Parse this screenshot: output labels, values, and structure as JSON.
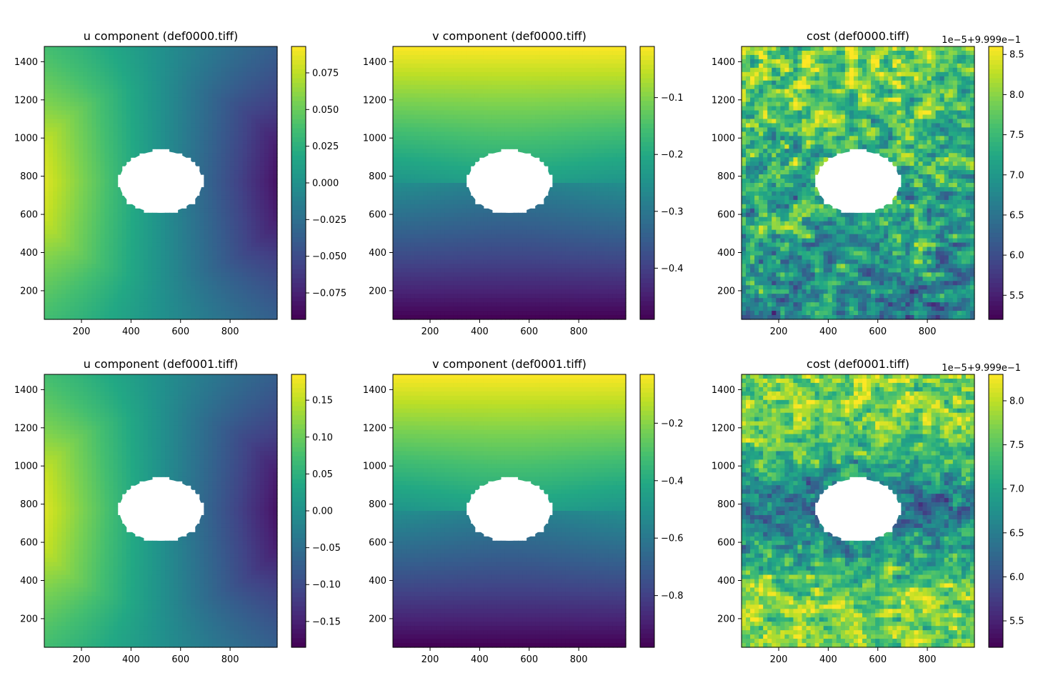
{
  "figure": {
    "background": "#ffffff"
  },
  "chart_data": [
    {
      "type": "heatmap",
      "title": "u component (def0000.tiff)",
      "field": "u",
      "x_ticks": [
        200,
        400,
        600,
        800
      ],
      "y_ticks": [
        200,
        400,
        600,
        800,
        1000,
        1200,
        1400
      ],
      "xlim": [
        50,
        990
      ],
      "ylim": [
        50,
        1480
      ],
      "colormap": "viridis",
      "colorbar": {
        "range": [
          -0.093,
          0.093
        ],
        "ticks": [
          "0.075",
          "0.050",
          "0.025",
          "0.000",
          "−0.025",
          "−0.050",
          "−0.075"
        ],
        "tick_values": [
          0.075,
          0.05,
          0.025,
          0,
          -0.025,
          -0.05,
          -0.075
        ],
        "offset_text": ""
      },
      "mask": {
        "shape": "ellipse",
        "center": [
          520,
          770
        ],
        "radii": [
          170,
          165
        ],
        "color": "#ffffff"
      }
    },
    {
      "type": "heatmap",
      "title": "v component (def0000.tiff)",
      "field": "v",
      "x_ticks": [
        200,
        400,
        600,
        800
      ],
      "y_ticks": [
        200,
        400,
        600,
        800,
        1000,
        1200,
        1400
      ],
      "xlim": [
        50,
        990
      ],
      "ylim": [
        50,
        1480
      ],
      "colormap": "viridis",
      "colorbar": {
        "range": [
          -0.49,
          -0.01
        ],
        "ticks": [
          "−0.1",
          "−0.2",
          "−0.3",
          "−0.4"
        ],
        "tick_values": [
          -0.1,
          -0.2,
          -0.3,
          -0.4
        ],
        "offset_text": ""
      },
      "mask": {
        "shape": "ellipse",
        "center": [
          520,
          770
        ],
        "radii": [
          170,
          165
        ],
        "color": "#ffffff"
      }
    },
    {
      "type": "heatmap",
      "title": "cost (def0000.tiff)",
      "field": "cost_a",
      "x_ticks": [
        200,
        400,
        600,
        800
      ],
      "y_ticks": [
        200,
        400,
        600,
        800,
        1000,
        1200,
        1400
      ],
      "xlim": [
        50,
        990
      ],
      "ylim": [
        50,
        1480
      ],
      "colormap": "viridis",
      "colorbar": {
        "range": [
          5.2,
          8.6
        ],
        "ticks": [
          "8.5",
          "8.0",
          "7.5",
          "7.0",
          "6.5",
          "6.0",
          "5.5"
        ],
        "tick_values": [
          8.5,
          8.0,
          7.5,
          7.0,
          6.5,
          6.0,
          5.5
        ],
        "offset_text": "1e−5+9.999e−1"
      },
      "mask": {
        "shape": "ellipse",
        "center": [
          520,
          770
        ],
        "radii": [
          170,
          165
        ],
        "color": "#ffffff"
      }
    },
    {
      "type": "heatmap",
      "title": "u component (def0001.tiff)",
      "field": "u",
      "x_ticks": [
        200,
        400,
        600,
        800
      ],
      "y_ticks": [
        200,
        400,
        600,
        800,
        1000,
        1200,
        1400
      ],
      "xlim": [
        50,
        990
      ],
      "ylim": [
        50,
        1480
      ],
      "colormap": "viridis",
      "colorbar": {
        "range": [
          -0.185,
          0.185
        ],
        "ticks": [
          "0.15",
          "0.10",
          "0.05",
          "0.00",
          "−0.05",
          "−0.10",
          "−0.15"
        ],
        "tick_values": [
          0.15,
          0.1,
          0.05,
          0,
          -0.05,
          -0.1,
          -0.15
        ],
        "offset_text": ""
      },
      "mask": {
        "shape": "ellipse",
        "center": [
          520,
          770
        ],
        "radii": [
          170,
          165
        ],
        "color": "#ffffff"
      }
    },
    {
      "type": "heatmap",
      "title": "v component (def0001.tiff)",
      "field": "v",
      "x_ticks": [
        200,
        400,
        600,
        800
      ],
      "y_ticks": [
        200,
        400,
        600,
        800,
        1000,
        1200,
        1400
      ],
      "xlim": [
        50,
        990
      ],
      "ylim": [
        50,
        1480
      ],
      "colormap": "viridis",
      "colorbar": {
        "range": [
          -0.98,
          -0.03
        ],
        "ticks": [
          "−0.2",
          "−0.4",
          "−0.6",
          "−0.8"
        ],
        "tick_values": [
          -0.2,
          -0.4,
          -0.6,
          -0.8
        ],
        "offset_text": ""
      },
      "mask": {
        "shape": "ellipse",
        "center": [
          520,
          770
        ],
        "radii": [
          170,
          165
        ],
        "color": "#ffffff"
      }
    },
    {
      "type": "heatmap",
      "title": "cost (def0001.tiff)",
      "field": "cost_b",
      "x_ticks": [
        200,
        400,
        600,
        800
      ],
      "y_ticks": [
        200,
        400,
        600,
        800,
        1000,
        1200,
        1400
      ],
      "xlim": [
        50,
        990
      ],
      "ylim": [
        50,
        1480
      ],
      "colormap": "viridis",
      "colorbar": {
        "range": [
          5.2,
          8.3
        ],
        "ticks": [
          "8.0",
          "7.5",
          "7.0",
          "6.5",
          "6.0",
          "5.5"
        ],
        "tick_values": [
          8.0,
          7.5,
          7.0,
          6.5,
          6.0,
          5.5
        ],
        "offset_text": "1e−5+9.999e−1"
      },
      "mask": {
        "shape": "ellipse",
        "center": [
          520,
          770
        ],
        "radii": [
          170,
          165
        ],
        "color": "#ffffff"
      }
    }
  ]
}
